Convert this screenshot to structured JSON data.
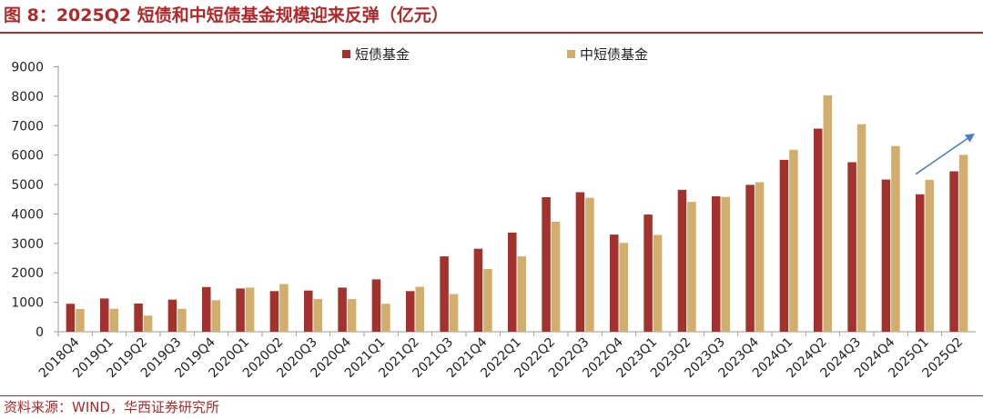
{
  "header": {
    "title": "图 8：2025Q2 短债和中短债基金规模迎来反弹（亿元）"
  },
  "footer": {
    "source": "资料来源：WIND，华西证券研究所"
  },
  "colors": {
    "short": "#a3322c",
    "medium_short": "#d2ae6d",
    "accent": "#b0282a",
    "arrow": "#4a7fc1"
  },
  "chart_data": {
    "type": "bar",
    "title": "",
    "xlabel": "",
    "ylabel": "",
    "ylim": [
      0,
      9000
    ],
    "yticks": [
      0,
      1000,
      2000,
      3000,
      4000,
      5000,
      6000,
      7000,
      8000,
      9000
    ],
    "grid": false,
    "legend_position": "top",
    "categories": [
      "2018Q4",
      "2019Q1",
      "2019Q2",
      "2019Q3",
      "2019Q4",
      "2020Q1",
      "2020Q2",
      "2020Q3",
      "2020Q4",
      "2021Q1",
      "2021Q2",
      "2021Q3",
      "2021Q4",
      "2022Q1",
      "2022Q2",
      "2022Q3",
      "2022Q4",
      "2023Q1",
      "2023Q2",
      "2023Q3",
      "2023Q4",
      "2024Q1",
      "2024Q2",
      "2024Q3",
      "2024Q4",
      "2025Q1",
      "2025Q2"
    ],
    "series": [
      {
        "name": "短债基金",
        "values": [
          950,
          1130,
          960,
          1090,
          1520,
          1470,
          1380,
          1400,
          1500,
          1780,
          1380,
          2560,
          2820,
          3370,
          4570,
          4740,
          3300,
          3980,
          4820,
          4600,
          4990,
          5840,
          6900,
          5760,
          5170,
          4670,
          5450
        ]
      },
      {
        "name": "中短债基金",
        "values": [
          770,
          780,
          550,
          780,
          1070,
          1500,
          1620,
          1110,
          1110,
          950,
          1530,
          1280,
          2130,
          2560,
          3740,
          4550,
          3020,
          3290,
          4410,
          4580,
          5080,
          6180,
          8030,
          7050,
          6310,
          5160,
          6010
        ]
      }
    ],
    "annotations": [
      {
        "type": "arrow",
        "from_category": "2025Q1",
        "to_category": "2025Q2",
        "from_value": 5350,
        "to_value": 6700
      }
    ]
  }
}
